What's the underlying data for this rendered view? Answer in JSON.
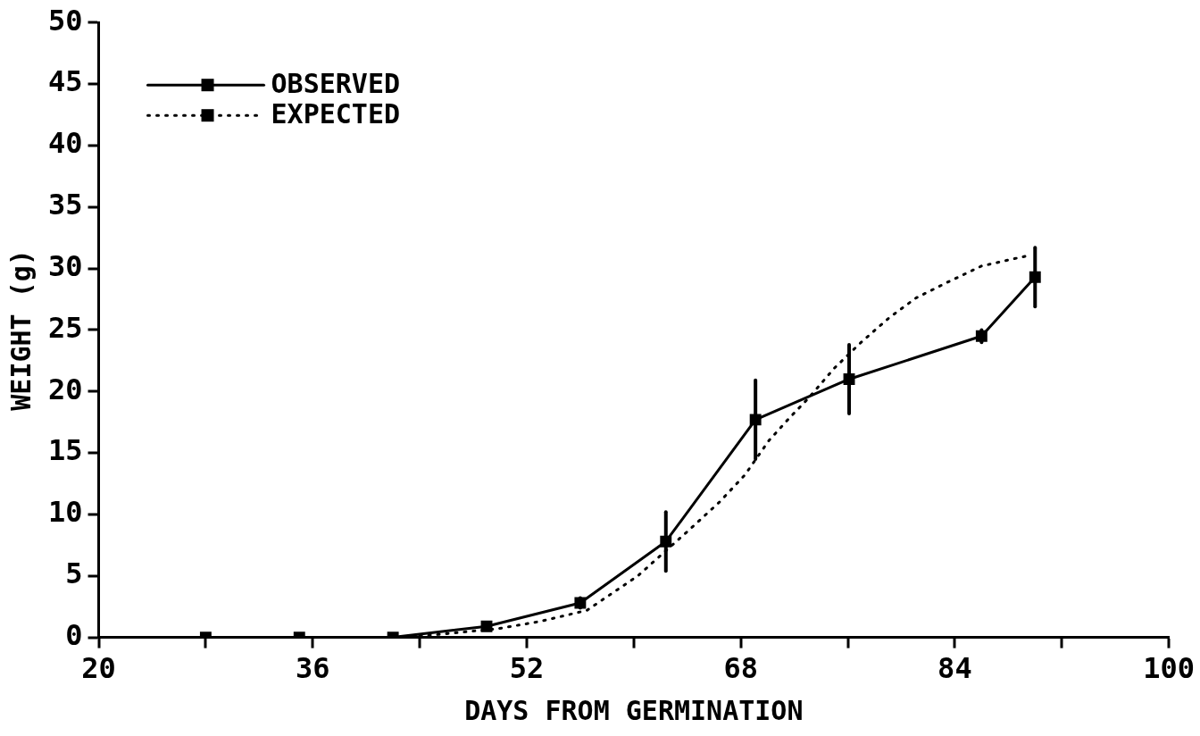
{
  "chart_data": {
    "type": "line",
    "xlabel": "DAYS FROM GERMINATION",
    "ylabel": "WEIGHT (g)",
    "xlim": [
      20,
      100
    ],
    "xticks": [
      20,
      {
        "value": 28,
        "label": null
      },
      36,
      {
        "value": 44,
        "label": null
      },
      52,
      {
        "value": 60,
        "label": null
      },
      68,
      {
        "value": 76,
        "label": null
      },
      84,
      {
        "value": 92,
        "label": null
      },
      100
    ],
    "ylim": [
      0,
      50
    ],
    "yticks": [
      0,
      5,
      10,
      15,
      20,
      25,
      30,
      35,
      40,
      45,
      50
    ],
    "grid": false,
    "legend": "top left",
    "series": [
      {
        "name": "OBSERVED",
        "color": "#000000",
        "line_style": "solid",
        "marker": "square",
        "x": [
          28,
          35,
          42,
          49,
          56,
          62.4,
          69.1,
          76.1,
          86,
          90
        ],
        "values": [
          0,
          0,
          0,
          0.9,
          2.8,
          7.8,
          17.7,
          21,
          24.5,
          29.3
        ],
        "errors": [
          null,
          null,
          null,
          null,
          0.4,
          2.4,
          3.2,
          2.8,
          0.5,
          2.4
        ]
      },
      {
        "name": "EXPECTED",
        "color": "#000000",
        "line_style": "dotted",
        "marker": "none",
        "x": [
          42,
          45,
          49.8,
          53,
          56.5,
          60.3,
          64,
          66.4,
          68.3,
          70.1,
          71.6,
          73.1,
          75,
          77,
          79.1,
          81.1,
          83.3,
          86,
          89.3
        ],
        "values": [
          0,
          0.2,
          0.7,
          1.3,
          2.2,
          5,
          8.6,
          11,
          13.2,
          16,
          17.8,
          19.5,
          21.9,
          24,
          26,
          27.6,
          28.8,
          30.2,
          31
        ]
      }
    ]
  }
}
